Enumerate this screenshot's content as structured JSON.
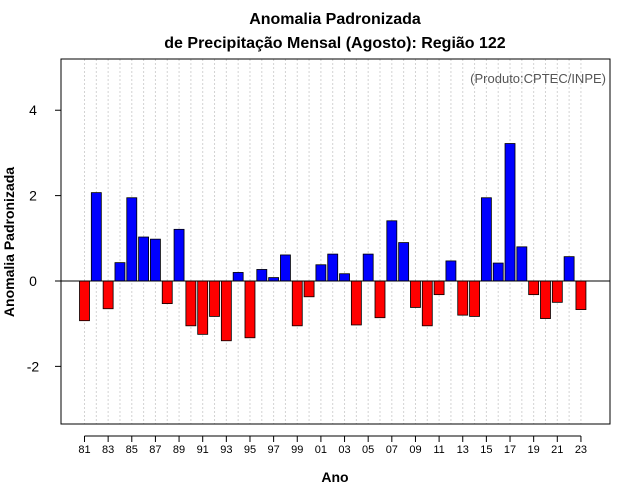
{
  "chart_data": {
    "type": "bar",
    "title_line1": "Anomalia Padronizada",
    "title_line2": "de Precipitação Mensal (Agosto): Região 122",
    "credit": "(Produto:CPTEC/INPE)",
    "xlabel": "Ano",
    "ylabel": "Anomalia Padronizada",
    "ylim": [
      -3.35,
      5.2
    ],
    "yticks": [
      -2,
      0,
      2,
      4
    ],
    "ytick_labels": [
      "-2",
      "0",
      "2",
      "4"
    ],
    "x_tick_labels": [
      "81",
      "83",
      "85",
      "87",
      "89",
      "91",
      "93",
      "95",
      "97",
      "99",
      "01",
      "03",
      "05",
      "07",
      "09",
      "11",
      "13",
      "15",
      "17",
      "19",
      "21",
      "23"
    ],
    "categories": [
      "1981",
      "1982",
      "1983",
      "1984",
      "1985",
      "1986",
      "1987",
      "1988",
      "1989",
      "1990",
      "1991",
      "1992",
      "1993",
      "1994",
      "1995",
      "1996",
      "1997",
      "1998",
      "1999",
      "2000",
      "2001",
      "2002",
      "2003",
      "2004",
      "2005",
      "2006",
      "2007",
      "2008",
      "2009",
      "2010",
      "2011",
      "2012",
      "2013",
      "2014",
      "2015",
      "2016",
      "2017",
      "2018",
      "2019",
      "2020",
      "2021",
      "2022",
      "2023"
    ],
    "values": [
      -0.93,
      2.07,
      -0.65,
      0.43,
      1.95,
      1.03,
      0.98,
      -0.53,
      1.21,
      -1.05,
      -1.25,
      -0.83,
      -1.4,
      0.2,
      -1.33,
      0.27,
      0.08,
      0.61,
      -1.05,
      -0.37,
      0.38,
      0.63,
      0.17,
      -1.03,
      0.63,
      -0.86,
      1.41,
      0.9,
      -0.62,
      -1.05,
      -0.32,
      0.47,
      -0.8,
      -0.83,
      1.95,
      0.42,
      3.22,
      0.8,
      -0.32,
      -0.88,
      -0.5,
      0.57,
      -0.67
    ],
    "colors": {
      "positive": "#0000ff",
      "negative": "#ff0000",
      "edge": "#000000",
      "grid": "#d3d3d3"
    }
  }
}
